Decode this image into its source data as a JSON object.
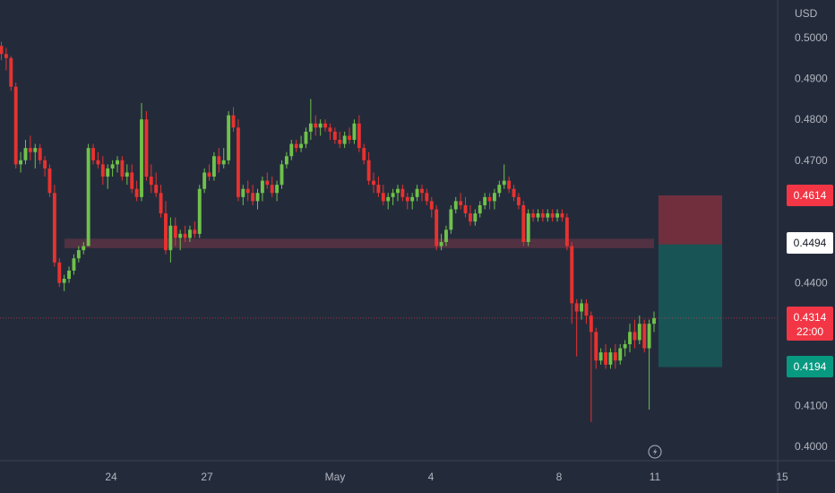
{
  "chart_data": {
    "type": "candlestick",
    "currency": "USD",
    "y_ticks": [
      "0.5000",
      "0.4900",
      "0.4800",
      "0.4700",
      "0.4600",
      "0.4500",
      "0.4400",
      "0.4300",
      "0.4200",
      "0.4100",
      "0.4000"
    ],
    "x_ticks": [
      "24",
      "27",
      "May",
      "4",
      "8",
      "11",
      "15"
    ],
    "ylim": [
      0.3975,
      0.514
    ],
    "zone": {
      "low": 0.4485,
      "high": 0.4508
    },
    "position": {
      "stop": 0.4614,
      "entry": 0.4494,
      "target": 0.4194
    },
    "badges": [
      {
        "label": "0.4614",
        "bg": "#f23645",
        "fg": "#ffffff"
      },
      {
        "label": "0.4494",
        "bg": "#ffffff",
        "fg": "#131722"
      },
      {
        "label": "0.4314",
        "sub": "22:00",
        "bg": "#f23645",
        "fg": "#ffffff"
      },
      {
        "label": "0.4194",
        "bg": "#089981",
        "fg": "#ffffff"
      }
    ],
    "current_price": 0.4314,
    "candles": [
      [
        0.498,
        0.499,
        0.4945,
        0.496
      ],
      [
        0.496,
        0.4975,
        0.492,
        0.495
      ],
      [
        0.495,
        0.4955,
        0.487,
        0.488
      ],
      [
        0.488,
        0.489,
        0.468,
        0.469
      ],
      [
        0.469,
        0.472,
        0.467,
        0.47
      ],
      [
        0.47,
        0.475,
        0.469,
        0.473
      ],
      [
        0.473,
        0.476,
        0.47,
        0.472
      ],
      [
        0.472,
        0.474,
        0.468,
        0.473
      ],
      [
        0.473,
        0.474,
        0.469,
        0.47
      ],
      [
        0.47,
        0.471,
        0.466,
        0.468
      ],
      [
        0.468,
        0.469,
        0.461,
        0.462
      ],
      [
        0.462,
        0.464,
        0.444,
        0.445
      ],
      [
        0.445,
        0.446,
        0.439,
        0.44
      ],
      [
        0.44,
        0.442,
        0.438,
        0.441
      ],
      [
        0.441,
        0.444,
        0.44,
        0.443
      ],
      [
        0.443,
        0.447,
        0.442,
        0.446
      ],
      [
        0.446,
        0.449,
        0.445,
        0.448
      ],
      [
        0.448,
        0.45,
        0.447,
        0.449
      ],
      [
        0.449,
        0.474,
        0.449,
        0.473
      ],
      [
        0.473,
        0.474,
        0.469,
        0.47
      ],
      [
        0.47,
        0.472,
        0.468,
        0.469
      ],
      [
        0.469,
        0.471,
        0.464,
        0.466
      ],
      [
        0.466,
        0.469,
        0.463,
        0.468
      ],
      [
        0.468,
        0.47,
        0.466,
        0.469
      ],
      [
        0.469,
        0.471,
        0.467,
        0.47
      ],
      [
        0.47,
        0.471,
        0.465,
        0.466
      ],
      [
        0.466,
        0.469,
        0.464,
        0.467
      ],
      [
        0.467,
        0.469,
        0.462,
        0.463
      ],
      [
        0.463,
        0.465,
        0.46,
        0.461
      ],
      [
        0.461,
        0.484,
        0.46,
        0.48
      ],
      [
        0.48,
        0.482,
        0.465,
        0.466
      ],
      [
        0.466,
        0.469,
        0.462,
        0.464
      ],
      [
        0.464,
        0.467,
        0.461,
        0.462
      ],
      [
        0.462,
        0.464,
        0.456,
        0.457
      ],
      [
        0.457,
        0.46,
        0.447,
        0.448
      ],
      [
        0.448,
        0.456,
        0.445,
        0.454
      ],
      [
        0.454,
        0.456,
        0.449,
        0.451
      ],
      [
        0.451,
        0.453,
        0.448,
        0.452
      ],
      [
        0.452,
        0.454,
        0.45,
        0.451
      ],
      [
        0.451,
        0.454,
        0.45,
        0.453
      ],
      [
        0.453,
        0.455,
        0.451,
        0.452
      ],
      [
        0.452,
        0.464,
        0.451,
        0.463
      ],
      [
        0.463,
        0.468,
        0.462,
        0.467
      ],
      [
        0.467,
        0.469,
        0.465,
        0.466
      ],
      [
        0.466,
        0.472,
        0.465,
        0.471
      ],
      [
        0.471,
        0.473,
        0.467,
        0.469
      ],
      [
        0.469,
        0.473,
        0.468,
        0.47
      ],
      [
        0.47,
        0.482,
        0.469,
        0.481
      ],
      [
        0.481,
        0.483,
        0.477,
        0.478
      ],
      [
        0.478,
        0.48,
        0.46,
        0.461
      ],
      [
        0.461,
        0.464,
        0.459,
        0.463
      ],
      [
        0.463,
        0.465,
        0.46,
        0.462
      ],
      [
        0.462,
        0.464,
        0.459,
        0.46
      ],
      [
        0.46,
        0.463,
        0.458,
        0.462
      ],
      [
        0.462,
        0.466,
        0.46,
        0.465
      ],
      [
        0.465,
        0.467,
        0.463,
        0.464
      ],
      [
        0.464,
        0.466,
        0.461,
        0.462
      ],
      [
        0.462,
        0.465,
        0.46,
        0.464
      ],
      [
        0.464,
        0.47,
        0.463,
        0.469
      ],
      [
        0.469,
        0.472,
        0.468,
        0.471
      ],
      [
        0.471,
        0.475,
        0.47,
        0.474
      ],
      [
        0.474,
        0.475,
        0.472,
        0.473
      ],
      [
        0.473,
        0.476,
        0.472,
        0.474
      ],
      [
        0.474,
        0.478,
        0.473,
        0.477
      ],
      [
        0.477,
        0.485,
        0.475,
        0.479
      ],
      [
        0.479,
        0.481,
        0.476,
        0.478
      ],
      [
        0.478,
        0.48,
        0.476,
        0.479
      ],
      [
        0.479,
        0.48,
        0.477,
        0.478
      ],
      [
        0.478,
        0.479,
        0.475,
        0.477
      ],
      [
        0.477,
        0.478,
        0.474,
        0.475
      ],
      [
        0.475,
        0.477,
        0.473,
        0.474
      ],
      [
        0.474,
        0.477,
        0.473,
        0.476
      ],
      [
        0.476,
        0.478,
        0.474,
        0.475
      ],
      [
        0.475,
        0.48,
        0.474,
        0.479
      ],
      [
        0.479,
        0.481,
        0.472,
        0.473
      ],
      [
        0.473,
        0.474,
        0.469,
        0.47
      ],
      [
        0.47,
        0.472,
        0.464,
        0.465
      ],
      [
        0.465,
        0.467,
        0.462,
        0.464
      ],
      [
        0.464,
        0.466,
        0.461,
        0.462
      ],
      [
        0.462,
        0.464,
        0.459,
        0.46
      ],
      [
        0.46,
        0.462,
        0.458,
        0.461
      ],
      [
        0.461,
        0.463,
        0.459,
        0.462
      ],
      [
        0.462,
        0.464,
        0.46,
        0.463
      ],
      [
        0.463,
        0.464,
        0.46,
        0.461
      ],
      [
        0.461,
        0.462,
        0.458,
        0.46
      ],
      [
        0.46,
        0.462,
        0.458,
        0.461
      ],
      [
        0.461,
        0.464,
        0.46,
        0.463
      ],
      [
        0.463,
        0.464,
        0.46,
        0.462
      ],
      [
        0.462,
        0.463,
        0.459,
        0.46
      ],
      [
        0.46,
        0.461,
        0.456,
        0.458
      ],
      [
        0.458,
        0.459,
        0.448,
        0.449
      ],
      [
        0.449,
        0.452,
        0.448,
        0.45
      ],
      [
        0.45,
        0.454,
        0.449,
        0.453
      ],
      [
        0.453,
        0.459,
        0.452,
        0.458
      ],
      [
        0.458,
        0.461,
        0.457,
        0.46
      ],
      [
        0.46,
        0.462,
        0.458,
        0.459
      ],
      [
        0.459,
        0.461,
        0.456,
        0.457
      ],
      [
        0.457,
        0.459,
        0.454,
        0.455
      ],
      [
        0.455,
        0.458,
        0.454,
        0.457
      ],
      [
        0.457,
        0.46,
        0.456,
        0.459
      ],
      [
        0.459,
        0.462,
        0.458,
        0.461
      ],
      [
        0.461,
        0.462,
        0.458,
        0.46
      ],
      [
        0.46,
        0.463,
        0.458,
        0.462
      ],
      [
        0.462,
        0.465,
        0.461,
        0.464
      ],
      [
        0.464,
        0.469,
        0.463,
        0.465
      ],
      [
        0.465,
        0.466,
        0.462,
        0.463
      ],
      [
        0.463,
        0.464,
        0.46,
        0.461
      ],
      [
        0.461,
        0.462,
        0.458,
        0.459
      ],
      [
        0.459,
        0.46,
        0.449,
        0.45
      ],
      [
        0.45,
        0.458,
        0.449,
        0.457
      ],
      [
        0.457,
        0.458,
        0.455,
        0.456
      ],
      [
        0.456,
        0.458,
        0.455,
        0.457
      ],
      [
        0.457,
        0.458,
        0.455,
        0.456
      ],
      [
        0.456,
        0.458,
        0.455,
        0.457
      ],
      [
        0.457,
        0.458,
        0.455,
        0.456
      ],
      [
        0.456,
        0.458,
        0.455,
        0.457
      ],
      [
        0.457,
        0.458,
        0.455,
        0.456
      ],
      [
        0.456,
        0.457,
        0.448,
        0.449
      ],
      [
        0.449,
        0.45,
        0.43,
        0.435
      ],
      [
        0.435,
        0.436,
        0.422,
        0.433
      ],
      [
        0.433,
        0.436,
        0.431,
        0.435
      ],
      [
        0.435,
        0.436,
        0.43,
        0.432
      ],
      [
        0.432,
        0.433,
        0.406,
        0.428
      ],
      [
        0.428,
        0.429,
        0.419,
        0.421
      ],
      [
        0.421,
        0.424,
        0.42,
        0.423
      ],
      [
        0.423,
        0.425,
        0.419,
        0.42
      ],
      [
        0.42,
        0.424,
        0.419,
        0.423
      ],
      [
        0.423,
        0.425,
        0.419,
        0.421
      ],
      [
        0.421,
        0.425,
        0.42,
        0.424
      ],
      [
        0.424,
        0.426,
        0.422,
        0.425
      ],
      [
        0.425,
        0.43,
        0.423,
        0.428
      ],
      [
        0.428,
        0.431,
        0.424,
        0.426
      ],
      [
        0.426,
        0.432,
        0.425,
        0.43
      ],
      [
        0.43,
        0.431,
        0.423,
        0.424
      ],
      [
        0.424,
        0.431,
        0.409,
        0.43
      ],
      [
        0.43,
        0.433,
        0.428,
        0.4314
      ]
    ]
  }
}
